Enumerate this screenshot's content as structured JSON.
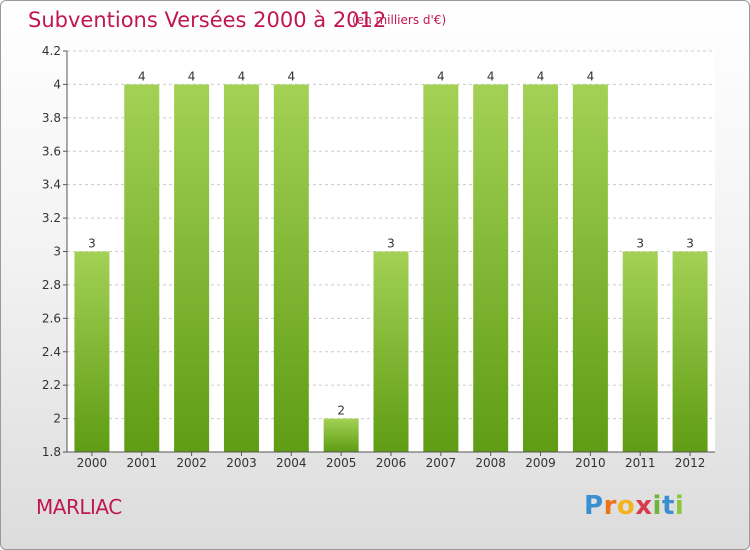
{
  "header": {
    "title": "Subventions Versées 2000 à 2012",
    "unit_note": "(en milliers d'€)"
  },
  "commune": "MARLIAC",
  "logo": {
    "text": "Proxiti",
    "letters": [
      "P",
      "r",
      "o",
      "x",
      "i",
      "t",
      "i"
    ]
  },
  "colors": {
    "title": "#c0174f",
    "bar_light": "#a3d155",
    "bar_dark": "#5f9c14",
    "axis": "#555555",
    "grid": "#cccccc"
  },
  "chart_data": {
    "type": "bar",
    "categories": [
      "2000",
      "2001",
      "2002",
      "2003",
      "2004",
      "2005",
      "2006",
      "2007",
      "2008",
      "2009",
      "2010",
      "2011",
      "2012"
    ],
    "values": [
      3,
      4,
      4,
      4,
      4,
      2,
      3,
      4,
      4,
      4,
      4,
      3,
      3
    ],
    "data_labels": [
      "3",
      "4",
      "4",
      "4",
      "4",
      "2",
      "3",
      "4",
      "4",
      "4",
      "4",
      "3",
      "3"
    ],
    "ylim": [
      1.8,
      4.2
    ],
    "yticks": [
      "1.8",
      "2",
      "2.2",
      "2.4",
      "2.6",
      "2.8",
      "3",
      "3.2",
      "3.4",
      "3.6",
      "3.8",
      "4",
      "4.2"
    ],
    "grid": true,
    "xlabel": "",
    "ylabel": ""
  }
}
